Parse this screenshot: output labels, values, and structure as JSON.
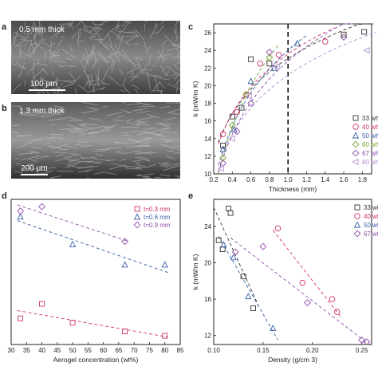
{
  "panels": {
    "a": {
      "letter": "a",
      "label": "0.5 mm thick",
      "scale": "100 μm"
    },
    "b": {
      "letter": "b",
      "label": "1.3 mm thick",
      "scale": "200 μm"
    },
    "c": {
      "letter": "c"
    },
    "d": {
      "letter": "d"
    },
    "e": {
      "letter": "e"
    }
  },
  "chart_data": [
    {
      "id": "c",
      "type": "scatter",
      "xlabel": "Thickness (mm)",
      "ylabel": "k (mW/m K)",
      "xlim": [
        0.2,
        1.9
      ],
      "ylim": [
        10,
        27
      ],
      "xticks": [
        "0.2",
        "0.4",
        "0.6",
        "0.8",
        "1.0",
        "1.2",
        "1.4",
        "1.6",
        "1.8"
      ],
      "yticks": [
        "10",
        "12",
        "14",
        "16",
        "18",
        "20",
        "22",
        "24",
        "26"
      ],
      "vline_x": 1.0,
      "series": [
        {
          "name": "33 wt%",
          "color": "#333333",
          "marker": "square",
          "x": [
            0.3,
            0.4,
            0.5,
            0.6,
            0.8,
            1.6,
            1.82
          ],
          "y": [
            13.2,
            16.5,
            17.5,
            23.0,
            22.5,
            25.8,
            26.1
          ]
        },
        {
          "name": "40 wt%",
          "color": "#d0306a",
          "marker": "circle",
          "x": [
            0.3,
            0.45,
            0.55,
            0.7,
            0.9,
            1.4
          ],
          "y": [
            14.5,
            17.0,
            19.0,
            22.5,
            23.5,
            25.0
          ]
        },
        {
          "name": "50 wt%",
          "color": "#3a5ea8",
          "marker": "triangle",
          "x": [
            0.3,
            0.42,
            0.6,
            0.85,
            1.1
          ],
          "y": [
            12.8,
            15.0,
            20.5,
            22.0,
            24.8
          ]
        },
        {
          "name": "60 wt%",
          "color": "#7aa832",
          "marker": "diamond",
          "x": [
            0.3,
            0.4,
            0.55,
            0.8
          ],
          "y": [
            11.8,
            15.5,
            19.0,
            23.2
          ]
        },
        {
          "name": "67 wt%",
          "color": "#8d4ca8",
          "marker": "diamond",
          "x": [
            0.3,
            0.45,
            0.6,
            0.8,
            1.6
          ],
          "y": [
            11.2,
            14.8,
            18.0,
            23.8,
            25.5
          ]
        },
        {
          "name": "80 wt%",
          "color": "#b090d0",
          "marker": "triangle-left",
          "x": [
            0.28,
            0.4,
            0.58,
            0.88,
            1.85
          ],
          "y": [
            10.6,
            14.0,
            18.8,
            22.2,
            24.0
          ]
        }
      ]
    },
    {
      "id": "d",
      "type": "scatter",
      "xlabel": "Aerogel concentration (wt%)",
      "ylabel": "",
      "xlim": [
        30,
        85
      ],
      "ylim": [
        0,
        10
      ],
      "xticks": [
        "30",
        "35",
        "40",
        "45",
        "50",
        "55",
        "60",
        "65",
        "70",
        "75",
        "80",
        "85"
      ],
      "series": [
        {
          "name": "t=0.3 mm",
          "color": "#d0306a",
          "marker": "square",
          "x": [
            33,
            40,
            50,
            67,
            80
          ],
          "y": [
            1.8,
            2.8,
            1.5,
            0.9,
            0.6
          ]
        },
        {
          "name": "t=0.6 mm",
          "color": "#3a5ea8",
          "marker": "triangle",
          "x": [
            33,
            50,
            67,
            80
          ],
          "y": [
            8.8,
            6.9,
            5.5,
            5.5
          ]
        },
        {
          "name": "t=0.9 mm",
          "color": "#8d4ca8",
          "marker": "diamond",
          "x": [
            33,
            40,
            67
          ],
          "y": [
            9.2,
            9.5,
            7.1
          ]
        }
      ]
    },
    {
      "id": "e",
      "type": "scatter",
      "xlabel": "Density (g/cm 3)",
      "ylabel": "k (mW/m K)",
      "xlim": [
        0.1,
        0.26
      ],
      "ylim": [
        11,
        27
      ],
      "xticks": [
        "0.10",
        "0.15",
        "0.20",
        "0.25"
      ],
      "yticks": [
        "12",
        "16",
        "20",
        "24"
      ],
      "series": [
        {
          "name": "33 wt%",
          "color": "#333333",
          "marker": "square",
          "x": [
            0.105,
            0.109,
            0.115,
            0.117,
            0.13,
            0.14
          ],
          "y": [
            22.5,
            21.5,
            26.0,
            25.5,
            18.5,
            15.0
          ]
        },
        {
          "name": "40 wt%",
          "color": "#d0306a",
          "marker": "circle",
          "x": [
            0.165,
            0.19,
            0.22,
            0.225
          ],
          "y": [
            23.8,
            17.8,
            16.0,
            14.6
          ]
        },
        {
          "name": "50 wt%",
          "color": "#3a5ea8",
          "marker": "triangle",
          "x": [
            0.11,
            0.12,
            0.135,
            0.16
          ],
          "y": [
            22.0,
            20.6,
            16.3,
            12.8
          ]
        },
        {
          "name": "67 wt%",
          "color": "#8d4ca8",
          "marker": "diamond",
          "x": [
            0.122,
            0.15,
            0.195,
            0.25,
            0.255
          ],
          "y": [
            21.2,
            21.8,
            15.6,
            11.5,
            11.3
          ]
        }
      ]
    }
  ]
}
